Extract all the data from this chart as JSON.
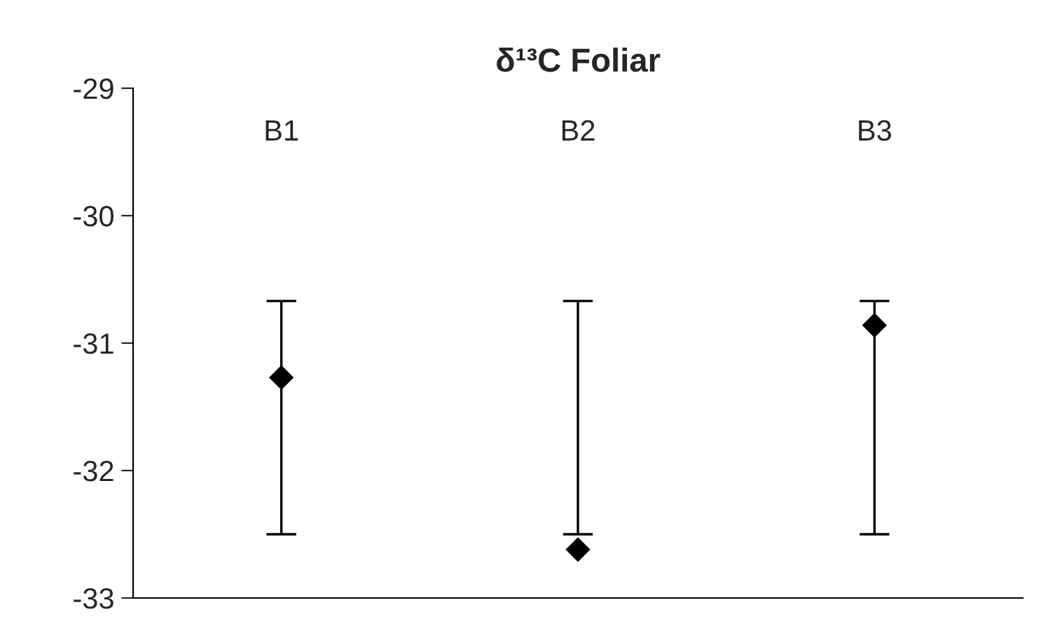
{
  "chart_data": {
    "type": "scatter",
    "title": "δ¹³C Foliar",
    "categories": [
      "B1",
      "B2",
      "B3"
    ],
    "series": [
      {
        "color": "#000000",
        "values": [
          -31.27,
          -32.62,
          -30.86
        ],
        "errors": [
          [
            -32.5,
            -30.67
          ],
          [
            -32.5,
            -30.67
          ],
          [
            -32.5,
            -30.67
          ]
        ]
      }
    ],
    "marker": "diamond",
    "ylim": [
      -33,
      -29
    ],
    "yticks": [
      -33,
      -32,
      -31,
      -30,
      -29
    ],
    "grid": false,
    "legend": false
  }
}
